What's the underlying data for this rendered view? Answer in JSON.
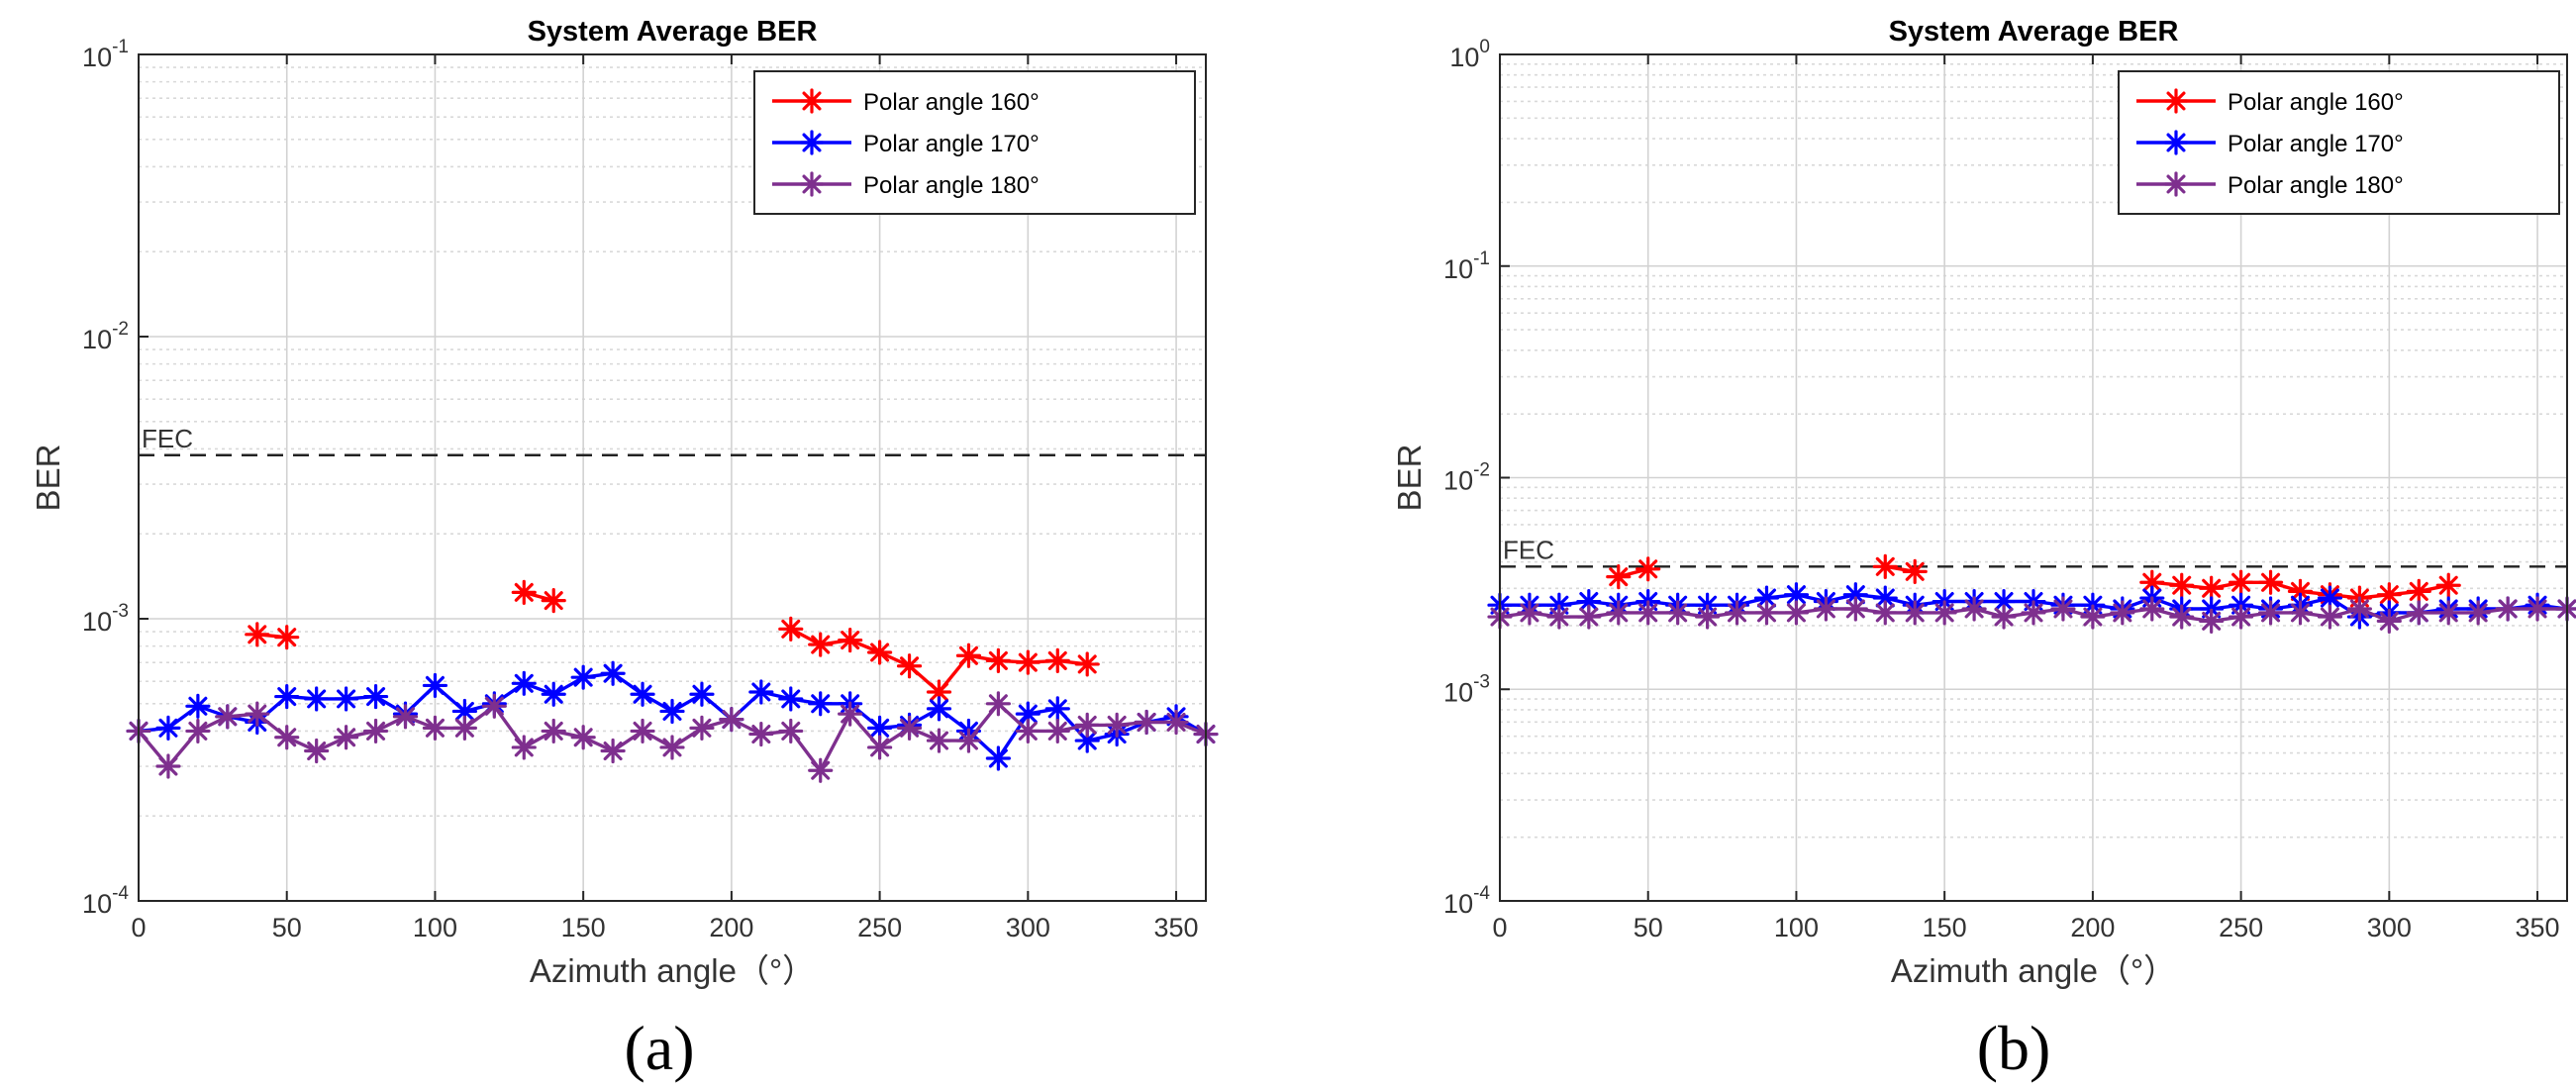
{
  "chart_data": [
    {
      "type": "line",
      "panel_label": "(a)",
      "title": "System Average BER",
      "xlabel": "Azimuth angle（°）",
      "ylabel": "BER",
      "yscale": "log",
      "xlim": [
        0,
        360
      ],
      "ylim": [
        0.0001,
        0.1
      ],
      "xticks": [
        "0",
        "50",
        "100",
        "150",
        "200",
        "250",
        "300",
        "350"
      ],
      "yticks": [
        {
          "base": "10",
          "exp": "-4"
        },
        {
          "base": "10",
          "exp": "-3"
        },
        {
          "base": "10",
          "exp": "-2"
        },
        {
          "base": "10",
          "exp": "-1"
        }
      ],
      "grid": true,
      "legend_position": "top-right",
      "threshold": {
        "label": "FEC",
        "value": 0.0038
      },
      "series": [
        {
          "name": "Polar angle 160°",
          "color": "#ff0000",
          "marker": "asterisk",
          "x": [
            40,
            50,
            130,
            140,
            220,
            230,
            240,
            250,
            260,
            270,
            280,
            290,
            300,
            310,
            320
          ],
          "y": [
            0.00088,
            0.00086,
            0.00124,
            0.00116,
            0.00092,
            0.00081,
            0.00084,
            0.00076,
            0.00068,
            0.00055,
            0.00074,
            0.00071,
            0.0007,
            0.00071,
            0.00069
          ],
          "segments": [
            [
              0,
              1
            ],
            [
              2,
              3
            ],
            [
              4,
              14
            ]
          ]
        },
        {
          "name": "Polar angle 170°",
          "color": "#0000ff",
          "marker": "asterisk",
          "x": [
            0,
            10,
            20,
            30,
            40,
            50,
            60,
            70,
            80,
            90,
            100,
            110,
            120,
            130,
            140,
            150,
            160,
            170,
            180,
            190,
            200,
            210,
            220,
            230,
            240,
            250,
            260,
            270,
            280,
            290,
            300,
            310,
            320,
            330,
            340,
            350,
            360
          ],
          "y": [
            0.0004,
            0.00041,
            0.00049,
            0.00045,
            0.00043,
            0.00053,
            0.00052,
            0.00052,
            0.00053,
            0.00046,
            0.00058,
            0.00047,
            0.0005,
            0.00059,
            0.00054,
            0.00062,
            0.00064,
            0.00054,
            0.00047,
            0.00054,
            0.00044,
            0.00055,
            0.00052,
            0.0005,
            0.0005,
            0.00041,
            0.00042,
            0.00048,
            0.0004,
            0.00032,
            0.00046,
            0.00048,
            0.00037,
            0.00039,
            0.00043,
            0.00045,
            0.00039
          ]
        },
        {
          "name": "Polar angle 180°",
          "color": "#7e2f8e",
          "marker": "asterisk",
          "x": [
            0,
            10,
            20,
            30,
            40,
            50,
            60,
            70,
            80,
            90,
            100,
            110,
            120,
            130,
            140,
            150,
            160,
            170,
            180,
            190,
            200,
            210,
            220,
            230,
            240,
            250,
            260,
            270,
            280,
            290,
            300,
            310,
            320,
            330,
            340,
            350,
            360
          ],
          "y": [
            0.0004,
            0.0003,
            0.0004,
            0.00045,
            0.00046,
            0.00038,
            0.00034,
            0.00038,
            0.0004,
            0.00045,
            0.00041,
            0.00041,
            0.00049,
            0.00035,
            0.0004,
            0.00038,
            0.00034,
            0.0004,
            0.00035,
            0.00041,
            0.00044,
            0.00039,
            0.0004,
            0.00029,
            0.00046,
            0.00035,
            0.00041,
            0.00037,
            0.00037,
            0.0005,
            0.0004,
            0.0004,
            0.00042,
            0.00042,
            0.00043,
            0.00043,
            0.00039
          ]
        }
      ]
    },
    {
      "type": "line",
      "panel_label": "(b)",
      "title": "System Average BER",
      "xlabel": "Azimuth angle（°）",
      "ylabel": "BER",
      "yscale": "log",
      "xlim": [
        0,
        360
      ],
      "ylim": [
        0.0001,
        1
      ],
      "xticks": [
        "0",
        "50",
        "100",
        "150",
        "200",
        "250",
        "300",
        "350"
      ],
      "yticks": [
        {
          "base": "10",
          "exp": "-4"
        },
        {
          "base": "10",
          "exp": "-3"
        },
        {
          "base": "10",
          "exp": "-2"
        },
        {
          "base": "10",
          "exp": "-1"
        },
        {
          "base": "10",
          "exp": "0"
        }
      ],
      "grid": true,
      "legend_position": "top-right",
      "threshold": {
        "label": "FEC",
        "value": 0.0038
      },
      "series": [
        {
          "name": "Polar angle 160°",
          "color": "#ff0000",
          "marker": "asterisk",
          "x": [
            40,
            50,
            130,
            140,
            220,
            230,
            240,
            250,
            260,
            270,
            280,
            290,
            300,
            310,
            320
          ],
          "y": [
            0.0034,
            0.0037,
            0.0038,
            0.0036,
            0.0032,
            0.0031,
            0.003,
            0.0032,
            0.0032,
            0.0029,
            0.0028,
            0.0027,
            0.0028,
            0.0029,
            0.0031
          ],
          "segments": [
            [
              0,
              1
            ],
            [
              2,
              3
            ],
            [
              4,
              14
            ]
          ]
        },
        {
          "name": "Polar angle 170°",
          "color": "#0000ff",
          "marker": "asterisk",
          "x": [
            0,
            10,
            20,
            30,
            40,
            50,
            60,
            70,
            80,
            90,
            100,
            110,
            120,
            130,
            140,
            150,
            160,
            170,
            180,
            190,
            200,
            210,
            220,
            230,
            240,
            250,
            260,
            270,
            280,
            290,
            300,
            310,
            320,
            330,
            340,
            350,
            360
          ],
          "y": [
            0.0025,
            0.0025,
            0.0025,
            0.0026,
            0.0025,
            0.0026,
            0.0025,
            0.0025,
            0.0025,
            0.0027,
            0.0028,
            0.0026,
            0.0028,
            0.0027,
            0.0025,
            0.0026,
            0.0026,
            0.0026,
            0.0026,
            0.0025,
            0.0025,
            0.0024,
            0.0027,
            0.0024,
            0.0024,
            0.0025,
            0.0024,
            0.0025,
            0.0027,
            0.0022,
            0.0023,
            0.0023,
            0.0024,
            0.0024,
            0.0024,
            0.0025,
            0.0024
          ]
        },
        {
          "name": "Polar angle 180°",
          "color": "#7e2f8e",
          "marker": "asterisk",
          "x": [
            0,
            10,
            20,
            30,
            40,
            50,
            60,
            70,
            80,
            90,
            100,
            110,
            120,
            130,
            140,
            150,
            160,
            170,
            180,
            190,
            200,
            210,
            220,
            230,
            240,
            250,
            260,
            270,
            280,
            290,
            300,
            310,
            320,
            330,
            340,
            350,
            360
          ],
          "y": [
            0.0022,
            0.0023,
            0.0022,
            0.0022,
            0.0023,
            0.0023,
            0.0023,
            0.0022,
            0.0023,
            0.0023,
            0.0023,
            0.0024,
            0.0024,
            0.0023,
            0.0023,
            0.0023,
            0.0024,
            0.0022,
            0.0023,
            0.0024,
            0.0022,
            0.0023,
            0.0024,
            0.0022,
            0.0021,
            0.0022,
            0.0023,
            0.0023,
            0.0022,
            0.0024,
            0.0021,
            0.0023,
            0.0023,
            0.0023,
            0.0024,
            0.0024,
            0.0024
          ]
        }
      ]
    }
  ]
}
